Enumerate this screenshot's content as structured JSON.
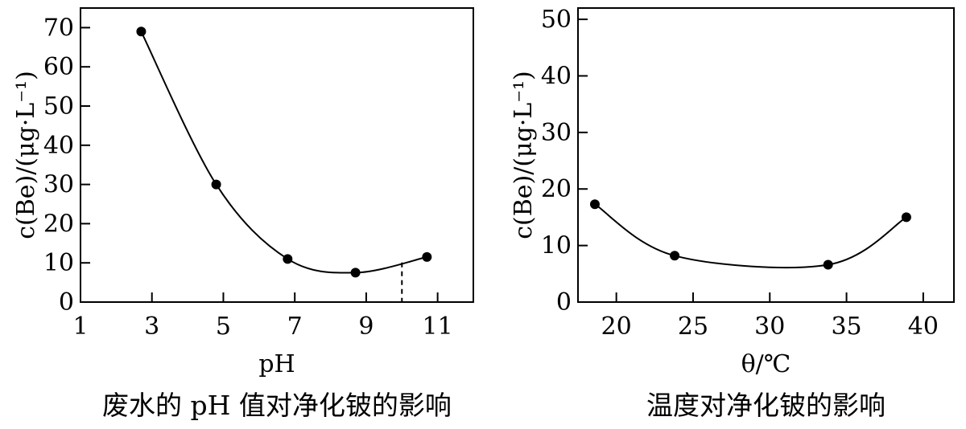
{
  "chart_data": [
    {
      "type": "line",
      "title": "",
      "xlabel": "pH",
      "ylabel": "c(Be)/(μg·L⁻¹)",
      "caption": "废水的 pH 值对净化铍的影响",
      "xlim": [
        1,
        12
      ],
      "ylim": [
        0,
        75
      ],
      "xticks": [
        "1",
        "3",
        "5",
        "7",
        "9",
        "11"
      ],
      "yticks": [
        "0",
        "10",
        "20",
        "30",
        "40",
        "50",
        "60",
        "70"
      ],
      "series": [
        {
          "x": [
            2.7,
            4.8,
            6.8,
            8.7,
            10.7
          ],
          "values": [
            69,
            30,
            11,
            7.5,
            11.5
          ]
        }
      ],
      "reference_line": {
        "x": 10,
        "style": "dashed"
      },
      "grid": false,
      "markers": "filled-circle",
      "smooth": true
    },
    {
      "type": "line",
      "title": "",
      "xlabel": "θ/℃",
      "ylabel": "c(Be)/(μg·L⁻¹)",
      "caption": "温度对净化铍的影响",
      "xlim": [
        17.5,
        42
      ],
      "ylim": [
        0,
        52
      ],
      "xticks": [
        "20",
        "25",
        "30",
        "35",
        "40"
      ],
      "yticks": [
        "0",
        "10",
        "20",
        "30",
        "40",
        "50"
      ],
      "series": [
        {
          "x": [
            18.6,
            23.8,
            33.8,
            38.9
          ],
          "values": [
            17.3,
            8.2,
            6.6,
            15
          ]
        }
      ],
      "grid": false,
      "markers": "filled-circle",
      "smooth": true
    }
  ]
}
